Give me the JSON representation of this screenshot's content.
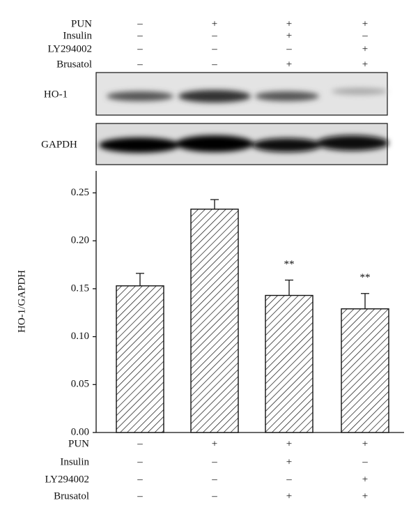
{
  "chart_data": {
    "type": "bar",
    "ylabel": "HO-1/GAPDH",
    "conditions": [
      {
        "name": "PUN",
        "values": [
          "–",
          "+",
          "+",
          "+"
        ]
      },
      {
        "name": "Insulin",
        "values": [
          "–",
          "–",
          "+",
          "–"
        ]
      },
      {
        "name": "LY294002",
        "values": [
          "–",
          "–",
          "–",
          "+"
        ]
      },
      {
        "name": "Brusatol",
        "values": [
          "–",
          "–",
          "+",
          "+"
        ]
      }
    ],
    "blot_bands": [
      "HO-1",
      "GAPDH"
    ],
    "values": [
      0.153,
      0.233,
      0.143,
      0.129
    ],
    "errors": [
      0.013,
      0.01,
      0.016,
      0.016
    ],
    "significance": [
      null,
      null,
      "**",
      "**"
    ],
    "color": "#111111",
    "ylim": [
      0,
      0.27
    ],
    "yticks": [
      {
        "value": 0,
        "label": "0.00"
      },
      {
        "value": 0.05,
        "label": "0.05"
      },
      {
        "value": 0.1,
        "label": "0.10"
      },
      {
        "value": 0.15,
        "label": "0.15"
      },
      {
        "value": 0.2,
        "label": "0.20"
      },
      {
        "value": 0.25,
        "label": "0.25"
      }
    ]
  }
}
